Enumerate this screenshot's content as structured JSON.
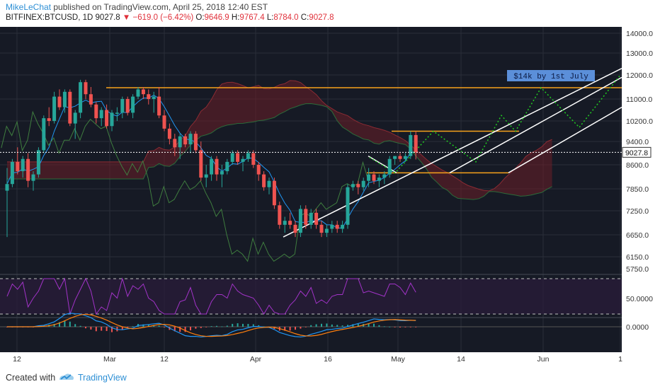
{
  "header": {
    "author": "MikeLeChat",
    "published": "published on TradingView.com, April 25, 2018 12:40 EST",
    "symbol": "BITFINEX:BTCUSD, 1D",
    "last": "9027.8",
    "change": "−619.0 (−6.42%)",
    "o_label": "O:",
    "o_value": "9646.9",
    "h_label": "H:",
    "h_value": "9767.4",
    "l_label": "L:",
    "l_value": "8784.0",
    "c_label": "C:",
    "c_value": "9027.8"
  },
  "footer": {
    "created_with": "Created with",
    "brand": "TradingView"
  },
  "colors": {
    "background": "#161a25",
    "up": "#26a69a",
    "down": "#ef5350",
    "cloud_bear": "#6b1f28",
    "cloud_bull": "#1f4a2a",
    "orange": "#f7a21b",
    "projection": "#22cc22",
    "rsi": "#a233c8",
    "macd": "#2196f3",
    "signal": "#ff7f0e",
    "annotation_bg": "#5b8fd9"
  },
  "chart_data": {
    "type": "candlestick",
    "symbol": "BITFINEX:BTCUSD",
    "timeframe": "1D",
    "price_axis_ticks": [
      14000.0,
      13000.0,
      12000.0,
      11000.0,
      10200.0,
      9400.0,
      8600.0,
      7850.0,
      7250.0,
      6650.0,
      6150.0
    ],
    "price_axis_labels": [
      "14000.0",
      "13000.0",
      "12000.0",
      "11000.0",
      "10200.0",
      "9400.0",
      "8600.0",
      "7850.0",
      "7250.0",
      "6650.0",
      "6150.0"
    ],
    "x_axis_labels": [
      "12",
      "Mar",
      "12",
      "Apr",
      "16",
      "May",
      "14",
      "Jun",
      "1"
    ],
    "current_price_label": "9027.8",
    "current_price": 9027.8,
    "annotation": "$14k by 1st July",
    "candles": [
      [
        7800,
        8500,
        6600,
        8000
      ],
      [
        8000,
        8800,
        7900,
        8700
      ],
      [
        8700,
        9200,
        8300,
        8400
      ],
      [
        8400,
        8900,
        8200,
        8800
      ],
      [
        8800,
        9000,
        7900,
        8100
      ],
      [
        8100,
        8400,
        7800,
        8300
      ],
      [
        8300,
        9200,
        8200,
        9100
      ],
      [
        9100,
        10400,
        9000,
        10300
      ],
      [
        10300,
        10700,
        10000,
        10200
      ],
      [
        10200,
        11300,
        10100,
        11100
      ],
      [
        11100,
        11400,
        10600,
        10700
      ],
      [
        10700,
        11400,
        10500,
        11300
      ],
      [
        11300,
        11400,
        10000,
        10100
      ],
      [
        10100,
        10600,
        9500,
        10500
      ],
      [
        10500,
        11800,
        10300,
        11700
      ],
      [
        11700,
        11800,
        11000,
        11200
      ],
      [
        11200,
        11500,
        10700,
        10800
      ],
      [
        10800,
        10900,
        10100,
        10300
      ],
      [
        10300,
        10700,
        10000,
        10600
      ],
      [
        10600,
        10800,
        9900,
        10000
      ],
      [
        10000,
        10600,
        9800,
        10500
      ],
      [
        10500,
        10700,
        10200,
        10500
      ],
      [
        10500,
        11100,
        10300,
        11000
      ],
      [
        11000,
        11100,
        10400,
        10500
      ],
      [
        10500,
        11200,
        10300,
        11100
      ],
      [
        11100,
        11500,
        11000,
        11400
      ],
      [
        11400,
        11500,
        11000,
        11200
      ],
      [
        11200,
        11400,
        10800,
        11000
      ],
      [
        11000,
        11300,
        10500,
        11100
      ],
      [
        11100,
        11500,
        10300,
        10400
      ],
      [
        10400,
        10600,
        9800,
        9900
      ],
      [
        9900,
        10100,
        9300,
        9500
      ],
      [
        9500,
        9700,
        8900,
        9200
      ],
      [
        9200,
        9700,
        8800,
        9600
      ],
      [
        9600,
        9700,
        9200,
        9300
      ],
      [
        9300,
        9800,
        9000,
        9700
      ],
      [
        9700,
        9800,
        9000,
        9100
      ],
      [
        9100,
        9400,
        8100,
        8200
      ],
      [
        8200,
        8600,
        7900,
        8300
      ],
      [
        8300,
        8900,
        8100,
        8800
      ],
      [
        8800,
        8900,
        8100,
        8300
      ],
      [
        8300,
        8600,
        7900,
        8400
      ],
      [
        8400,
        8800,
        8300,
        8700
      ],
      [
        8700,
        9100,
        8600,
        9000
      ],
      [
        9000,
        9100,
        8600,
        8700
      ],
      [
        8700,
        8900,
        8400,
        8800
      ],
      [
        8800,
        9100,
        8700,
        9000
      ],
      [
        9000,
        9100,
        8500,
        8600
      ],
      [
        8600,
        8700,
        8100,
        8300
      ],
      [
        8300,
        8400,
        7800,
        7900
      ],
      [
        7900,
        8200,
        7700,
        8100
      ],
      [
        8100,
        8200,
        7300,
        7400
      ],
      [
        7400,
        7500,
        6800,
        6900
      ],
      [
        6900,
        7100,
        6700,
        7000
      ],
      [
        7000,
        7200,
        6800,
        6900
      ],
      [
        6900,
        7000,
        6600,
        6700
      ],
      [
        6700,
        7400,
        6600,
        7300
      ],
      [
        7300,
        7400,
        6800,
        6900
      ],
      [
        6900,
        7300,
        6800,
        7200
      ],
      [
        7200,
        7300,
        6800,
        6900
      ],
      [
        6900,
        7000,
        6600,
        6700
      ],
      [
        6700,
        6900,
        6600,
        6800
      ],
      [
        6800,
        7000,
        6700,
        6900
      ],
      [
        6900,
        7000,
        6700,
        6800
      ],
      [
        6800,
        7000,
        6700,
        6900
      ],
      [
        6900,
        8000,
        6800,
        7900
      ],
      [
        7900,
        8100,
        7800,
        8000
      ],
      [
        8000,
        8100,
        7700,
        7900
      ],
      [
        7900,
        8200,
        7800,
        8100
      ],
      [
        8100,
        8500,
        7900,
        8300
      ],
      [
        8300,
        8400,
        8000,
        8100
      ],
      [
        8100,
        8300,
        7900,
        8200
      ],
      [
        8200,
        8400,
        8000,
        8300
      ],
      [
        8300,
        8900,
        8200,
        8800
      ],
      [
        8800,
        8900,
        8600,
        8900
      ],
      [
        8900,
        9000,
        8700,
        8800
      ],
      [
        8800,
        9000,
        8700,
        8900
      ],
      [
        8900,
        9800,
        8800,
        9650
      ],
      [
        9650,
        9800,
        8784,
        9027.8
      ]
    ],
    "horizontal_levels": [
      11470,
      9800,
      8350
    ],
    "indicators": [
      "Ichimoku Cloud",
      "RSI",
      "MACD"
    ],
    "rsi_axis_label": "50.0000",
    "macd_axis_label": "0.0000",
    "price_scale_max": 14200,
    "price_scale_min": 5750
  }
}
